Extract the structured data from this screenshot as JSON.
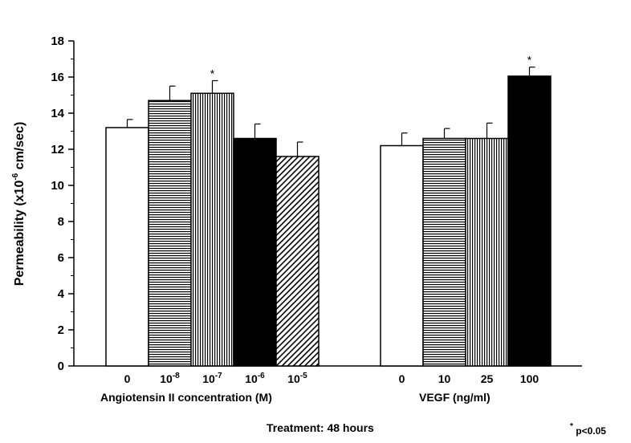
{
  "chart_data": {
    "type": "bar",
    "ylabel": "Permeability (x10",
    "ylabel_sup": "-6",
    "ylabel_unit": " cm/sec)",
    "ylim": [
      0,
      18
    ],
    "yticks": [
      0,
      2,
      4,
      6,
      8,
      10,
      12,
      14,
      16,
      18
    ],
    "groups": [
      {
        "name": "Angiotensin II concentration (M)",
        "bars": [
          {
            "label": "0",
            "sup": "",
            "value": 13.2,
            "error": 0.45,
            "pattern": "white",
            "significant": false
          },
          {
            "label": "10",
            "sup": "-8",
            "value": 14.7,
            "error": 0.8,
            "pattern": "horizontal",
            "significant": false
          },
          {
            "label": "10",
            "sup": "-7",
            "value": 15.1,
            "error": 0.7,
            "pattern": "vertical",
            "significant": true
          },
          {
            "label": "10",
            "sup": "-6",
            "value": 12.6,
            "error": 0.8,
            "pattern": "black",
            "significant": false
          },
          {
            "label": "10",
            "sup": "-5",
            "value": 11.6,
            "error": 0.8,
            "pattern": "diagonal",
            "significant": false
          }
        ]
      },
      {
        "name": "VEGF (ng/ml)",
        "bars": [
          {
            "label": "0",
            "sup": "",
            "value": 12.2,
            "error": 0.7,
            "pattern": "white",
            "significant": false
          },
          {
            "label": "10",
            "sup": "",
            "value": 12.6,
            "error": 0.55,
            "pattern": "horizontal",
            "significant": false
          },
          {
            "label": "25",
            "sup": "",
            "value": 12.6,
            "error": 0.85,
            "pattern": "vertical",
            "significant": false
          },
          {
            "label": "100",
            "sup": "",
            "value": 16.05,
            "error": 0.5,
            "pattern": "black",
            "significant": true
          }
        ]
      }
    ],
    "significance_marker": "*",
    "footer": "Treatment: 48 hours",
    "note_marker": "*",
    "note": " p<0.05"
  }
}
